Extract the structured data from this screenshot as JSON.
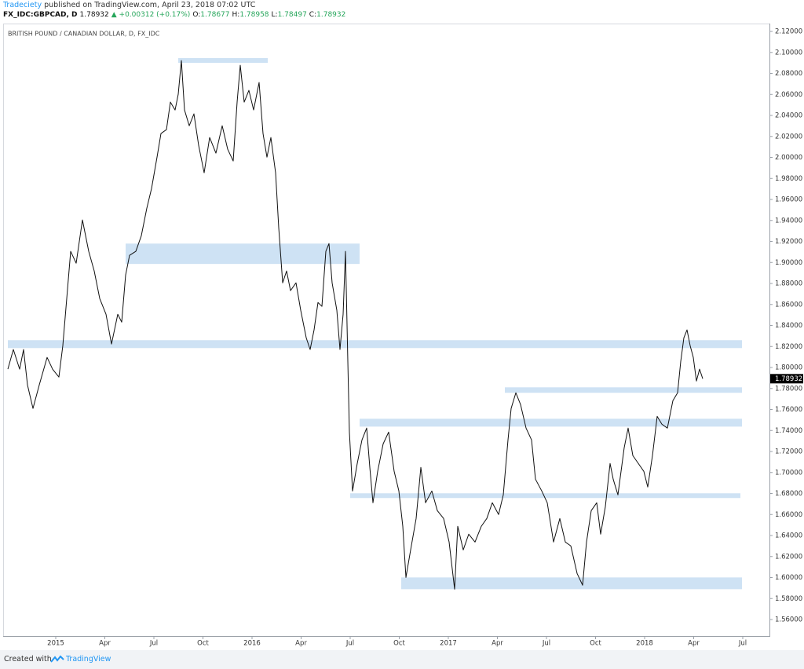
{
  "header": {
    "author": "Tradeciety",
    "published": "published on TradingView.com, April 23, 2018 07:02 UTC",
    "symbol": "FX_IDC:GBPCAD, D",
    "last": 1.78932,
    "change": "▲ +0.00312 (+0.17%)",
    "ohlc": [
      {
        "label": "O:",
        "value": 1.78677
      },
      {
        "label": "H:",
        "value": 1.78958
      },
      {
        "label": "L:",
        "value": 1.78497
      },
      {
        "label": "C:",
        "value": 1.78932
      }
    ]
  },
  "footer": {
    "created": "Created with",
    "brand": "TradingView"
  },
  "chart_data": {
    "type": "line",
    "title": "BRITISH POUND / CANADIAN DOLLAR, D, FX_IDC",
    "x": [
      2014.756,
      2014.784,
      2014.816,
      2014.836,
      2014.856,
      2014.884,
      2014.916,
      2014.956,
      2014.984,
      2015.016,
      2015.036,
      2015.056,
      2015.076,
      2015.104,
      2015.136,
      2015.168,
      2015.196,
      2015.224,
      2015.256,
      2015.284,
      2015.316,
      2015.336,
      2015.356,
      2015.376,
      2015.408,
      2015.436,
      2015.464,
      2015.488,
      2015.516,
      2015.536,
      2015.564,
      2015.584,
      2015.608,
      2015.624,
      2015.64,
      2015.656,
      2015.68,
      2015.704,
      2015.728,
      2015.756,
      2015.784,
      2015.816,
      2015.848,
      2015.876,
      2015.904,
      2015.924,
      2015.94,
      2015.96,
      2015.984,
      2016.008,
      2016.036,
      2016.056,
      2016.076,
      2016.096,
      2016.12,
      2016.136,
      2016.156,
      2016.176,
      2016.196,
      2016.224,
      2016.248,
      2016.276,
      2016.296,
      2016.316,
      2016.336,
      2016.356,
      2016.376,
      2016.392,
      2016.408,
      2016.432,
      2016.448,
      2016.464,
      2016.476,
      2016.488,
      2016.496,
      2016.512,
      2016.536,
      2016.56,
      2016.584,
      2016.6,
      2016.616,
      2016.64,
      2016.668,
      2016.696,
      2016.724,
      2016.748,
      2016.768,
      2016.784,
      2016.808,
      2016.836,
      2016.86,
      2016.884,
      2016.916,
      2016.944,
      2016.976,
      2017.004,
      2017.032,
      2017.048,
      2017.076,
      2017.104,
      2017.136,
      2017.168,
      2017.196,
      2017.224,
      2017.256,
      2017.28,
      2017.304,
      2017.32,
      2017.344,
      2017.368,
      2017.396,
      2017.424,
      2017.444,
      2017.476,
      2017.504,
      2017.536,
      2017.568,
      2017.596,
      2017.624,
      2017.656,
      2017.684,
      2017.704,
      2017.728,
      2017.756,
      2017.776,
      2017.8,
      2017.824,
      2017.84,
      2017.864,
      2017.896,
      2017.916,
      2017.94,
      2017.968,
      2017.996,
      2018.016,
      2018.04,
      2018.064,
      2018.088,
      2018.116,
      2018.144,
      2018.168,
      2018.184,
      2018.2,
      2018.216,
      2018.232,
      2018.248,
      2018.264,
      2018.28,
      2018.296
    ],
    "series": [
      {
        "color": "#111111",
        "values": [
          1.7984,
          1.8171,
          1.7984,
          1.8171,
          1.7834,
          1.761,
          1.7834,
          1.8096,
          1.7984,
          1.7909,
          1.8208,
          1.8657,
          1.9106,
          1.8993,
          1.9405,
          1.9106,
          1.8919,
          1.8657,
          1.8507,
          1.8223,
          1.8507,
          1.8432,
          1.8881,
          1.9068,
          1.9106,
          1.9255,
          1.9517,
          1.9704,
          2.0003,
          2.0228,
          2.0265,
          2.0527,
          2.0452,
          2.0602,
          2.0923,
          2.0452,
          2.0302,
          2.0415,
          2.0115,
          1.9854,
          2.019,
          2.0041,
          2.0302,
          2.0078,
          1.9966,
          2.0527,
          2.0878,
          2.0527,
          2.0639,
          2.0452,
          2.0714,
          2.0228,
          2.0003,
          2.019,
          1.9854,
          1.933,
          1.8806,
          1.8919,
          1.8732,
          1.8806,
          1.8545,
          1.8283,
          1.8171,
          1.8358,
          1.8619,
          1.8582,
          1.9106,
          1.918,
          1.8806,
          1.8545,
          1.8171,
          1.8507,
          1.9106,
          1.8058,
          1.7385,
          1.6824,
          1.7086,
          1.731,
          1.7423,
          1.7049,
          1.6712,
          1.7011,
          1.7273,
          1.7385,
          1.7011,
          1.6824,
          1.6488,
          1.6001,
          1.6263,
          1.6562,
          1.7049,
          1.6712,
          1.6824,
          1.6637,
          1.6562,
          1.6338,
          1.5889,
          1.6488,
          1.6263,
          1.6413,
          1.6338,
          1.6488,
          1.6562,
          1.6712,
          1.66,
          1.6787,
          1.731,
          1.761,
          1.7759,
          1.7647,
          1.7423,
          1.731,
          1.6936,
          1.6824,
          1.6712,
          1.6338,
          1.6562,
          1.6338,
          1.6301,
          1.6039,
          1.5927,
          1.6338,
          1.6637,
          1.6712,
          1.6413,
          1.6675,
          1.7086,
          1.6936,
          1.6787,
          1.7236,
          1.7423,
          1.7161,
          1.7086,
          1.7011,
          1.6862,
          1.7161,
          1.7535,
          1.746,
          1.7423,
          1.7684,
          1.7759,
          1.8058,
          1.8283,
          1.8358,
          1.8208,
          1.8096,
          1.7871,
          1.7984,
          1.7893
        ]
      }
    ],
    "zones": [
      {
        "x": [
          2015.624,
          2016.08
        ],
        "y": [
          2.0901,
          2.0946
        ]
      },
      {
        "x": [
          2015.356,
          2016.548
        ],
        "y": [
          1.8986,
          1.918
        ]
      },
      {
        "x": [
          2014.756,
          2018.496
        ],
        "y": [
          1.8185,
          1.826
        ]
      },
      {
        "x": [
          2017.288,
          2018.496
        ],
        "y": [
          1.7759,
          1.7811
        ]
      },
      {
        "x": [
          2016.548,
          2018.496
        ],
        "y": [
          1.7437,
          1.7512
        ]
      },
      {
        "x": [
          2016.5,
          2018.488
        ],
        "y": [
          1.6757,
          1.6802
        ]
      },
      {
        "x": [
          2016.76,
          2018.496
        ],
        "y": [
          1.5889,
          1.6001
        ]
      }
    ],
    "zone_color": "#c6ddf2",
    "last_price": 1.78932,
    "xlim": [
      2014.736,
      2018.636
    ],
    "ylim": [
      1.5443,
      2.1275
    ],
    "xticks": [
      2015,
      {
        "value": 2015.25,
        "label": "Apr"
      },
      {
        "value": 2015.5,
        "label": "Jul"
      },
      {
        "value": 2015.75,
        "label": "Oct"
      },
      2016,
      {
        "value": 2016.25,
        "label": "Apr"
      },
      {
        "value": 2016.5,
        "label": "Jul"
      },
      {
        "value": 2016.75,
        "label": "Oct"
      },
      2017,
      {
        "value": 2017.25,
        "label": "Apr"
      },
      {
        "value": 2017.5,
        "label": "Jul"
      },
      {
        "value": 2017.75,
        "label": "Oct"
      },
      2018,
      {
        "value": 2018.25,
        "label": "Apr"
      },
      {
        "value": 2018.5,
        "label": "Jul"
      }
    ],
    "yticks": [
      {
        "value": 1.56,
        "label": "1.56000"
      },
      {
        "value": 1.58,
        "label": "1.58000"
      },
      {
        "value": 1.6,
        "label": "1.60000"
      },
      {
        "value": 1.62,
        "label": "1.62000"
      },
      {
        "value": 1.64,
        "label": "1.64000"
      },
      {
        "value": 1.66,
        "label": "1.66000"
      },
      {
        "value": 1.68,
        "label": "1.68000"
      },
      {
        "value": 1.7,
        "label": "1.70000"
      },
      {
        "value": 1.72,
        "label": "1.72000"
      },
      {
        "value": 1.74,
        "label": "1.74000"
      },
      {
        "value": 1.76,
        "label": "1.76000"
      },
      {
        "value": 1.78,
        "label": "1.78000"
      },
      {
        "value": 1.8,
        "label": "1.80000"
      },
      {
        "value": 1.82,
        "label": "1.82000"
      },
      {
        "value": 1.84,
        "label": "1.84000"
      },
      {
        "value": 1.86,
        "label": "1.86000"
      },
      {
        "value": 1.88,
        "label": "1.88000"
      },
      {
        "value": 1.9,
        "label": "1.90000"
      },
      {
        "value": 1.92,
        "label": "1.92000"
      },
      {
        "value": 1.94,
        "label": "1.94000"
      },
      {
        "value": 1.96,
        "label": "1.96000"
      },
      {
        "value": 1.98,
        "label": "1.98000"
      },
      {
        "value": 2.0,
        "label": "2.00000"
      },
      {
        "value": 2.02,
        "label": "2.02000"
      },
      {
        "value": 2.04,
        "label": "2.04000"
      },
      {
        "value": 2.06,
        "label": "2.06000"
      },
      {
        "value": 2.08,
        "label": "2.08000"
      },
      {
        "value": 2.1,
        "label": "2.10000"
      },
      {
        "value": 2.12,
        "label": "2.12000"
      }
    ],
    "grid": false
  }
}
